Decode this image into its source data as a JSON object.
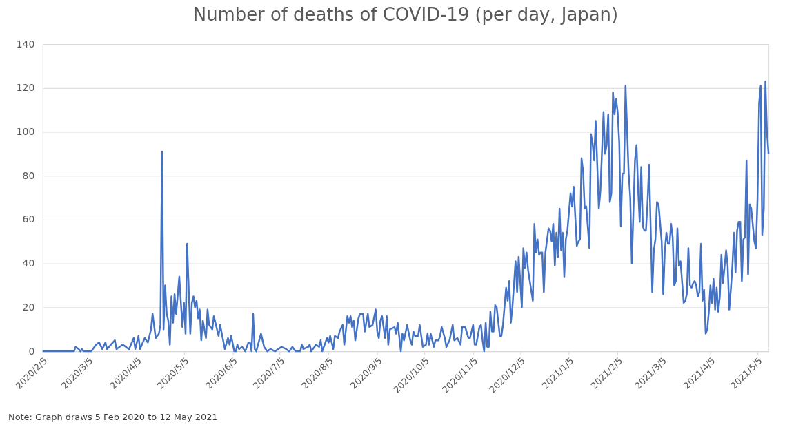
{
  "chart_data": {
    "type": "line",
    "title": "Number of deaths of COVID-19 (per day, Japan)",
    "annotations": [
      "Note: Graph draws 5 Feb 2020 to 12 May 2021"
    ],
    "grid": "y",
    "xlim": [
      "2020-02-05",
      "2021-05-12"
    ],
    "xticks": [
      {
        "value": "2020-02-05",
        "label": "2020/2/5"
      },
      {
        "value": "2020-03-05",
        "label": "2020/3/5"
      },
      {
        "value": "2020-04-05",
        "label": "2020/4/5"
      },
      {
        "value": "2020-05-05",
        "label": "2020/5/5"
      },
      {
        "value": "2020-06-05",
        "label": "2020/6/5"
      },
      {
        "value": "2020-07-05",
        "label": "2020/7/5"
      },
      {
        "value": "2020-08-05",
        "label": "2020/8/5"
      },
      {
        "value": "2020-09-05",
        "label": "2020/9/5"
      },
      {
        "value": "2020-10-05",
        "label": "2020/10/5"
      },
      {
        "value": "2020-11-05",
        "label": "2020/11/5"
      },
      {
        "value": "2020-12-05",
        "label": "2020/12/5"
      },
      {
        "value": "2021-01-05",
        "label": "2021/1/5"
      },
      {
        "value": "2021-02-05",
        "label": "2021/2/5"
      },
      {
        "value": "2021-03-05",
        "label": "2021/3/5"
      },
      {
        "value": "2021-04-05",
        "label": "2021/4/5"
      },
      {
        "value": "2021-05-05",
        "label": "2021/5/5"
      }
    ],
    "ylim": [
      0,
      140
    ],
    "yticks": [
      0,
      20,
      40,
      60,
      80,
      100,
      120,
      140
    ],
    "series": [
      {
        "color": "#4472c4",
        "x": [
          "2020-02-05",
          "2020-02-25",
          "2020-02-26",
          "2020-02-28",
          "2020-02-29",
          "2020-03-01",
          "2020-03-02",
          "2020-03-07",
          "2020-03-10",
          "2020-03-12",
          "2020-03-14",
          "2020-03-16",
          "2020-03-17",
          "2020-03-22",
          "2020-03-23",
          "2020-03-27",
          "2020-03-31",
          "2020-04-03",
          "2020-04-04",
          "2020-04-06",
          "2020-04-07",
          "2020-04-10",
          "2020-04-12",
          "2020-04-14",
          "2020-04-15",
          "2020-04-17",
          "2020-04-19",
          "2020-04-20",
          "2020-04-21",
          "2020-04-22",
          "2020-04-23",
          "2020-04-24",
          "2020-04-25",
          "2020-04-26",
          "2020-04-27",
          "2020-04-28",
          "2020-04-29",
          "2020-04-30",
          "2020-05-02",
          "2020-05-04",
          "2020-05-05",
          "2020-05-06",
          "2020-05-07",
          "2020-05-09",
          "2020-05-10",
          "2020-05-11",
          "2020-05-12",
          "2020-05-13",
          "2020-05-14",
          "2020-05-15",
          "2020-05-16",
          "2020-05-17",
          "2020-05-19",
          "2020-05-20",
          "2020-05-21",
          "2020-05-23",
          "2020-05-24",
          "2020-05-27",
          "2020-05-28",
          "2020-05-31",
          "2020-06-02",
          "2020-06-03",
          "2020-06-04",
          "2020-06-06",
          "2020-06-07",
          "2020-06-08",
          "2020-06-09",
          "2020-06-11",
          "2020-06-13",
          "2020-06-15",
          "2020-06-16",
          "2020-06-17",
          "2020-06-18",
          "2020-06-19",
          "2020-06-20",
          "2020-06-23",
          "2020-06-25",
          "2020-06-26",
          "2020-06-27",
          "2020-06-29",
          "2020-07-02",
          "2020-07-06",
          "2020-07-09",
          "2020-07-11",
          "2020-07-13",
          "2020-07-15",
          "2020-07-18",
          "2020-07-19",
          "2020-07-20",
          "2020-07-23",
          "2020-07-24",
          "2020-07-25",
          "2020-07-28",
          "2020-07-30",
          "2020-07-31",
          "2020-08-01",
          "2020-08-04",
          "2020-08-05",
          "2020-08-06",
          "2020-08-08",
          "2020-08-09",
          "2020-08-11",
          "2020-08-12",
          "2020-08-14",
          "2020-08-15",
          "2020-08-17",
          "2020-08-18",
          "2020-08-19",
          "2020-08-20",
          "2020-08-21",
          "2020-08-22",
          "2020-08-24",
          "2020-08-25",
          "2020-08-27",
          "2020-08-28",
          "2020-08-30",
          "2020-08-31",
          "2020-09-02",
          "2020-09-04",
          "2020-09-05",
          "2020-09-06",
          "2020-09-07",
          "2020-09-08",
          "2020-09-10",
          "2020-09-11",
          "2020-09-12",
          "2020-09-13",
          "2020-09-16",
          "2020-09-17",
          "2020-09-18",
          "2020-09-20",
          "2020-09-21",
          "2020-09-22",
          "2020-09-24",
          "2020-09-26",
          "2020-09-27",
          "2020-09-28",
          "2020-09-29",
          "2020-10-01",
          "2020-10-02",
          "2020-10-04",
          "2020-10-06",
          "2020-10-07",
          "2020-10-08",
          "2020-10-09",
          "2020-10-11",
          "2020-10-12",
          "2020-10-14",
          "2020-10-15",
          "2020-10-16",
          "2020-10-18",
          "2020-10-19",
          "2020-10-21",
          "2020-10-23",
          "2020-10-24",
          "2020-10-26",
          "2020-10-28",
          "2020-10-29",
          "2020-10-31",
          "2020-11-02",
          "2020-11-03",
          "2020-11-05",
          "2020-11-06",
          "2020-11-07",
          "2020-11-09",
          "2020-11-10",
          "2020-11-11",
          "2020-11-12",
          "2020-11-13",
          "2020-11-14",
          "2020-11-15",
          "2020-11-16",
          "2020-11-17",
          "2020-11-18",
          "2020-11-19",
          "2020-11-20",
          "2020-11-22",
          "2020-11-23",
          "2020-11-24",
          "2020-11-26",
          "2020-11-27",
          "2020-11-28",
          "2020-11-29",
          "2020-11-30",
          "2020-12-02",
          "2020-12-03",
          "2020-12-04",
          "2020-12-06",
          "2020-12-07",
          "2020-12-08",
          "2020-12-09",
          "2020-12-10",
          "2020-12-13",
          "2020-12-14",
          "2020-12-15",
          "2020-12-16",
          "2020-12-17",
          "2020-12-18",
          "2020-12-19",
          "2020-12-20",
          "2020-12-21",
          "2020-12-23",
          "2020-12-24",
          "2020-12-25",
          "2020-12-26",
          "2020-12-27",
          "2020-12-28",
          "2020-12-29",
          "2020-12-30",
          "2020-12-31",
          "2021-01-01",
          "2021-01-02",
          "2021-01-03",
          "2021-01-04",
          "2021-01-06",
          "2021-01-07",
          "2021-01-08",
          "2021-01-10",
          "2021-01-11",
          "2021-01-12",
          "2021-01-13",
          "2021-01-14",
          "2021-01-15",
          "2021-01-16",
          "2021-01-18",
          "2021-01-19",
          "2021-01-20",
          "2021-01-21",
          "2021-01-22",
          "2021-01-24",
          "2021-01-25",
          "2021-01-26",
          "2021-01-27",
          "2021-01-28",
          "2021-01-29",
          "2021-01-30",
          "2021-01-31",
          "2021-02-01",
          "2021-02-02",
          "2021-02-03",
          "2021-02-04",
          "2021-02-05",
          "2021-02-06",
          "2021-02-07",
          "2021-02-08",
          "2021-02-09",
          "2021-02-10",
          "2021-02-12",
          "2021-02-13",
          "2021-02-14",
          "2021-02-16",
          "2021-02-17",
          "2021-02-18",
          "2021-02-19",
          "2021-02-20",
          "2021-02-21",
          "2021-02-22",
          "2021-02-23",
          "2021-02-24",
          "2021-02-25",
          "2021-02-27",
          "2021-02-28",
          "2021-03-01",
          "2021-03-02",
          "2021-03-03",
          "2021-03-05",
          "2021-03-06",
          "2021-03-07",
          "2021-03-08",
          "2021-03-09",
          "2021-03-10",
          "2021-03-11",
          "2021-03-12",
          "2021-03-13",
          "2021-03-14",
          "2021-03-15",
          "2021-03-16",
          "2021-03-17",
          "2021-03-19",
          "2021-03-20",
          "2021-03-21",
          "2021-03-22",
          "2021-03-23",
          "2021-03-24",
          "2021-03-25",
          "2021-03-26",
          "2021-03-27",
          "2021-03-28",
          "2021-03-29",
          "2021-03-30",
          "2021-03-31",
          "2021-04-01",
          "2021-04-02",
          "2021-04-03",
          "2021-04-04",
          "2021-04-05",
          "2021-04-06",
          "2021-04-07",
          "2021-04-08",
          "2021-04-09",
          "2021-04-10",
          "2021-04-11",
          "2021-04-12",
          "2021-04-13",
          "2021-04-15",
          "2021-04-16",
          "2021-04-17",
          "2021-04-18",
          "2021-04-19",
          "2021-04-20",
          "2021-04-21",
          "2021-04-22",
          "2021-04-23",
          "2021-04-24",
          "2021-04-25",
          "2021-04-26",
          "2021-04-27",
          "2021-04-28",
          "2021-04-29",
          "2021-04-30",
          "2021-05-01",
          "2021-05-03",
          "2021-05-04",
          "2021-05-05",
          "2021-05-06",
          "2021-05-07",
          "2021-05-08",
          "2021-05-09",
          "2021-05-10",
          "2021-05-11",
          "2021-05-12"
        ],
        "values": [
          0,
          0,
          2,
          1,
          0,
          1,
          0,
          0,
          3,
          4,
          1,
          4,
          1,
          5,
          1,
          3,
          1,
          6,
          1,
          7,
          1,
          6,
          4,
          10,
          17,
          6,
          8,
          12,
          91,
          10,
          30,
          17,
          14,
          3,
          25,
          13,
          26,
          17,
          34,
          11,
          22,
          8,
          49,
          8,
          22,
          25,
          20,
          23,
          15,
          19,
          5,
          14,
          6,
          19,
          12,
          10,
          16,
          7,
          12,
          1,
          6,
          3,
          7,
          0,
          0,
          3,
          1,
          2,
          0,
          4,
          4,
          0,
          17,
          1,
          0,
          8,
          2,
          1,
          0,
          1,
          0,
          2,
          1,
          0,
          2,
          0,
          0,
          3,
          1,
          2,
          3,
          0,
          3,
          2,
          5,
          0,
          6,
          4,
          7,
          1,
          7,
          6,
          9,
          12,
          3,
          16,
          13,
          16,
          11,
          14,
          5,
          15,
          17,
          17,
          9,
          17,
          11,
          12,
          19,
          9,
          6,
          14,
          16,
          6,
          16,
          3,
          10,
          11,
          8,
          13,
          0,
          8,
          5,
          12,
          5,
          3,
          9,
          7,
          7,
          12,
          2,
          3,
          8,
          3,
          8,
          2,
          5,
          5,
          7,
          11,
          6,
          2,
          5,
          12,
          5,
          6,
          3,
          11,
          11,
          6,
          6,
          12,
          3,
          3,
          11,
          12,
          5,
          0,
          13,
          2,
          2,
          18,
          9,
          9,
          21,
          20,
          7,
          7,
          12,
          29,
          23,
          32,
          13,
          20,
          41,
          27,
          43,
          20,
          47,
          38,
          45,
          37,
          23,
          58,
          45,
          51,
          44,
          45,
          45,
          27,
          45,
          56,
          55,
          50,
          58,
          39,
          54,
          43,
          65,
          46,
          54,
          34,
          51,
          55,
          72,
          66,
          75,
          48,
          50,
          51,
          88,
          82,
          65,
          66,
          47,
          99,
          95,
          87,
          105,
          65,
          73,
          91,
          109,
          90,
          94,
          108,
          68,
          72,
          118,
          108,
          115,
          109,
          95,
          57,
          81,
          81,
          121,
          81,
          70,
          40,
          87,
          94,
          74,
          59,
          84,
          57,
          55,
          55,
          68,
          85,
          27,
          46,
          51,
          68,
          67,
          50,
          26,
          46,
          54,
          49,
          49,
          58,
          52,
          30,
          32,
          56,
          39,
          41,
          22,
          23,
          26,
          47,
          30,
          29,
          31,
          32,
          30,
          25,
          27,
          49,
          23,
          28,
          8,
          10,
          18,
          30,
          22,
          33,
          19,
          29,
          18,
          25,
          44,
          31,
          46,
          39,
          19,
          28,
          39,
          54,
          36,
          55,
          59,
          59,
          32,
          51,
          52,
          87,
          35,
          67,
          65,
          50,
          47,
          70,
          113,
          121,
          53,
          65,
          123,
          100,
          90
        ]
      }
    ]
  }
}
